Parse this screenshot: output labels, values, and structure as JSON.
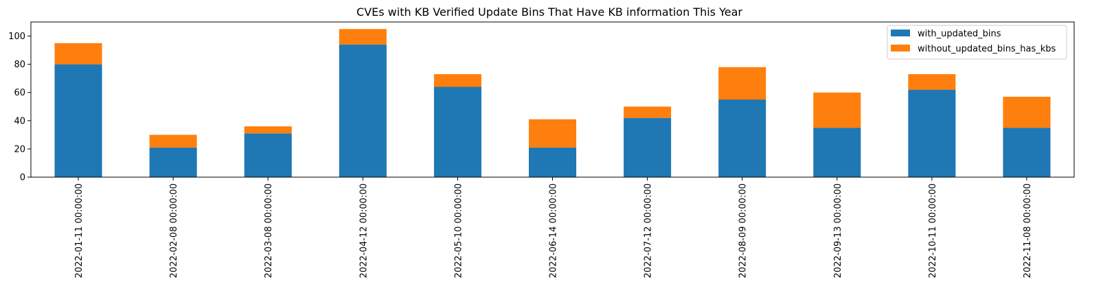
{
  "chart_data": {
    "type": "bar",
    "stacked": true,
    "title": "CVEs with KB Verified Update Bins That Have KB information This Year",
    "xlabel": "",
    "ylabel": "",
    "categories": [
      "2022-01-11 00:00:00",
      "2022-02-08 00:00:00",
      "2022-03-08 00:00:00",
      "2022-04-12 00:00:00",
      "2022-05-10 00:00:00",
      "2022-06-14 00:00:00",
      "2022-07-12 00:00:00",
      "2022-08-09 00:00:00",
      "2022-09-13 00:00:00",
      "2022-10-11 00:00:00",
      "2022-11-08 00:00:00"
    ],
    "series": [
      {
        "name": "with_updated_bins",
        "color": "#1f77b4",
        "values": [
          80,
          21,
          31,
          94,
          64,
          21,
          42,
          55,
          35,
          62,
          35
        ]
      },
      {
        "name": "without_updated_bins_has_kbs",
        "color": "#ff7f0e",
        "values": [
          15,
          9,
          5,
          11,
          9,
          20,
          8,
          23,
          25,
          11,
          22
        ]
      }
    ],
    "ylim": [
      0,
      110
    ],
    "yticks": [
      0,
      20,
      40,
      60,
      80,
      100
    ],
    "grid": false,
    "legend_position": "top-right"
  }
}
